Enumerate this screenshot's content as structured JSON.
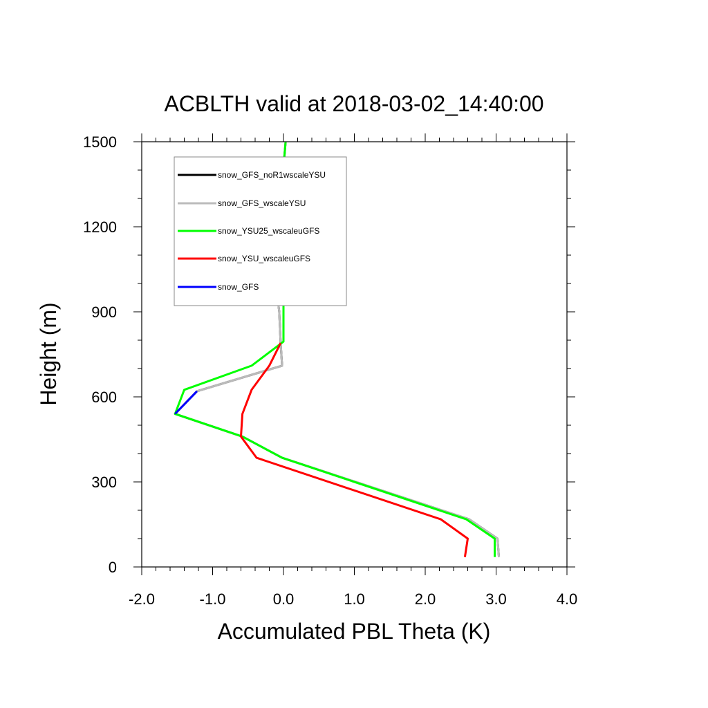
{
  "chart_data": {
    "type": "line",
    "title": "ACBLTH valid at 2018-03-02_14:40:00",
    "xlabel": "Accumulated PBL Theta (K)",
    "ylabel": "Height (m)",
    "xlim": [
      -2.0,
      4.0
    ],
    "ylim": [
      0,
      1500
    ],
    "xticks": [
      -2.0,
      -1.0,
      0.0,
      1.0,
      2.0,
      3.0,
      4.0
    ],
    "xtick_labels": [
      "-2.0",
      "-1.0",
      "0.0",
      "1.0",
      "2.0",
      "3.0",
      "4.0"
    ],
    "yticks": [
      0,
      300,
      600,
      900,
      1200,
      1500
    ],
    "ytick_labels": [
      "0",
      "300",
      "600",
      "900",
      "1200",
      "1500"
    ],
    "grid": false,
    "legend_position": "top-left",
    "series": [
      {
        "name": "snow_GFS_noR1wscaleYSU",
        "color": "#000000",
        "points": [
          [
            3.04,
            35
          ],
          [
            3.02,
            100
          ],
          [
            2.62,
            168
          ],
          [
            -0.02,
            385
          ],
          [
            -0.58,
            460
          ],
          [
            -1.53,
            540
          ],
          [
            -1.22,
            620
          ],
          [
            -0.02,
            710
          ],
          [
            -0.04,
            790
          ],
          [
            -0.06,
            900
          ],
          [
            -0.1,
            985
          ],
          [
            -0.04,
            1100
          ],
          [
            -0.02,
            1200
          ],
          [
            0.0,
            1300
          ],
          [
            0.0,
            1410
          ],
          [
            0.03,
            1500
          ]
        ]
      },
      {
        "name": "snow_GFS_wscaleYSU",
        "color": "#bbbbbb",
        "points": [
          [
            3.04,
            35
          ],
          [
            3.02,
            100
          ],
          [
            2.62,
            168
          ],
          [
            -0.02,
            385
          ],
          [
            -0.58,
            460
          ],
          [
            -1.53,
            540
          ],
          [
            -1.22,
            620
          ],
          [
            -0.02,
            710
          ],
          [
            -0.04,
            790
          ],
          [
            -0.06,
            900
          ],
          [
            -0.1,
            985
          ],
          [
            -0.04,
            1100
          ],
          [
            -0.02,
            1200
          ],
          [
            0.0,
            1300
          ],
          [
            0.0,
            1410
          ],
          [
            0.03,
            1500
          ]
        ]
      },
      {
        "name": "snow_YSU25_wscaleuGFS",
        "color": "#00ff00",
        "points": [
          [
            2.98,
            35
          ],
          [
            2.98,
            100
          ],
          [
            2.58,
            168
          ],
          [
            -0.02,
            385
          ],
          [
            -0.58,
            460
          ],
          [
            -1.53,
            540
          ],
          [
            -1.4,
            625
          ],
          [
            -0.45,
            710
          ],
          [
            0.0,
            795
          ],
          [
            0.0,
            900
          ],
          [
            0.0,
            1000
          ],
          [
            0.0,
            1100
          ],
          [
            0.0,
            1200
          ],
          [
            0.0,
            1300
          ],
          [
            0.0,
            1410
          ],
          [
            0.03,
            1500
          ]
        ]
      },
      {
        "name": "snow_YSU_wscaleuGFS",
        "color": "#ff0000",
        "points": [
          [
            2.56,
            35
          ],
          [
            2.6,
            100
          ],
          [
            2.22,
            168
          ],
          [
            -0.38,
            385
          ],
          [
            -0.6,
            460
          ],
          [
            -0.58,
            540
          ],
          [
            -0.45,
            625
          ],
          [
            -0.2,
            710
          ],
          [
            -0.04,
            790
          ]
        ]
      },
      {
        "name": "snow_GFS",
        "color": "#0000ff",
        "points": [
          [
            -1.53,
            540
          ],
          [
            -1.22,
            620
          ]
        ]
      }
    ]
  }
}
